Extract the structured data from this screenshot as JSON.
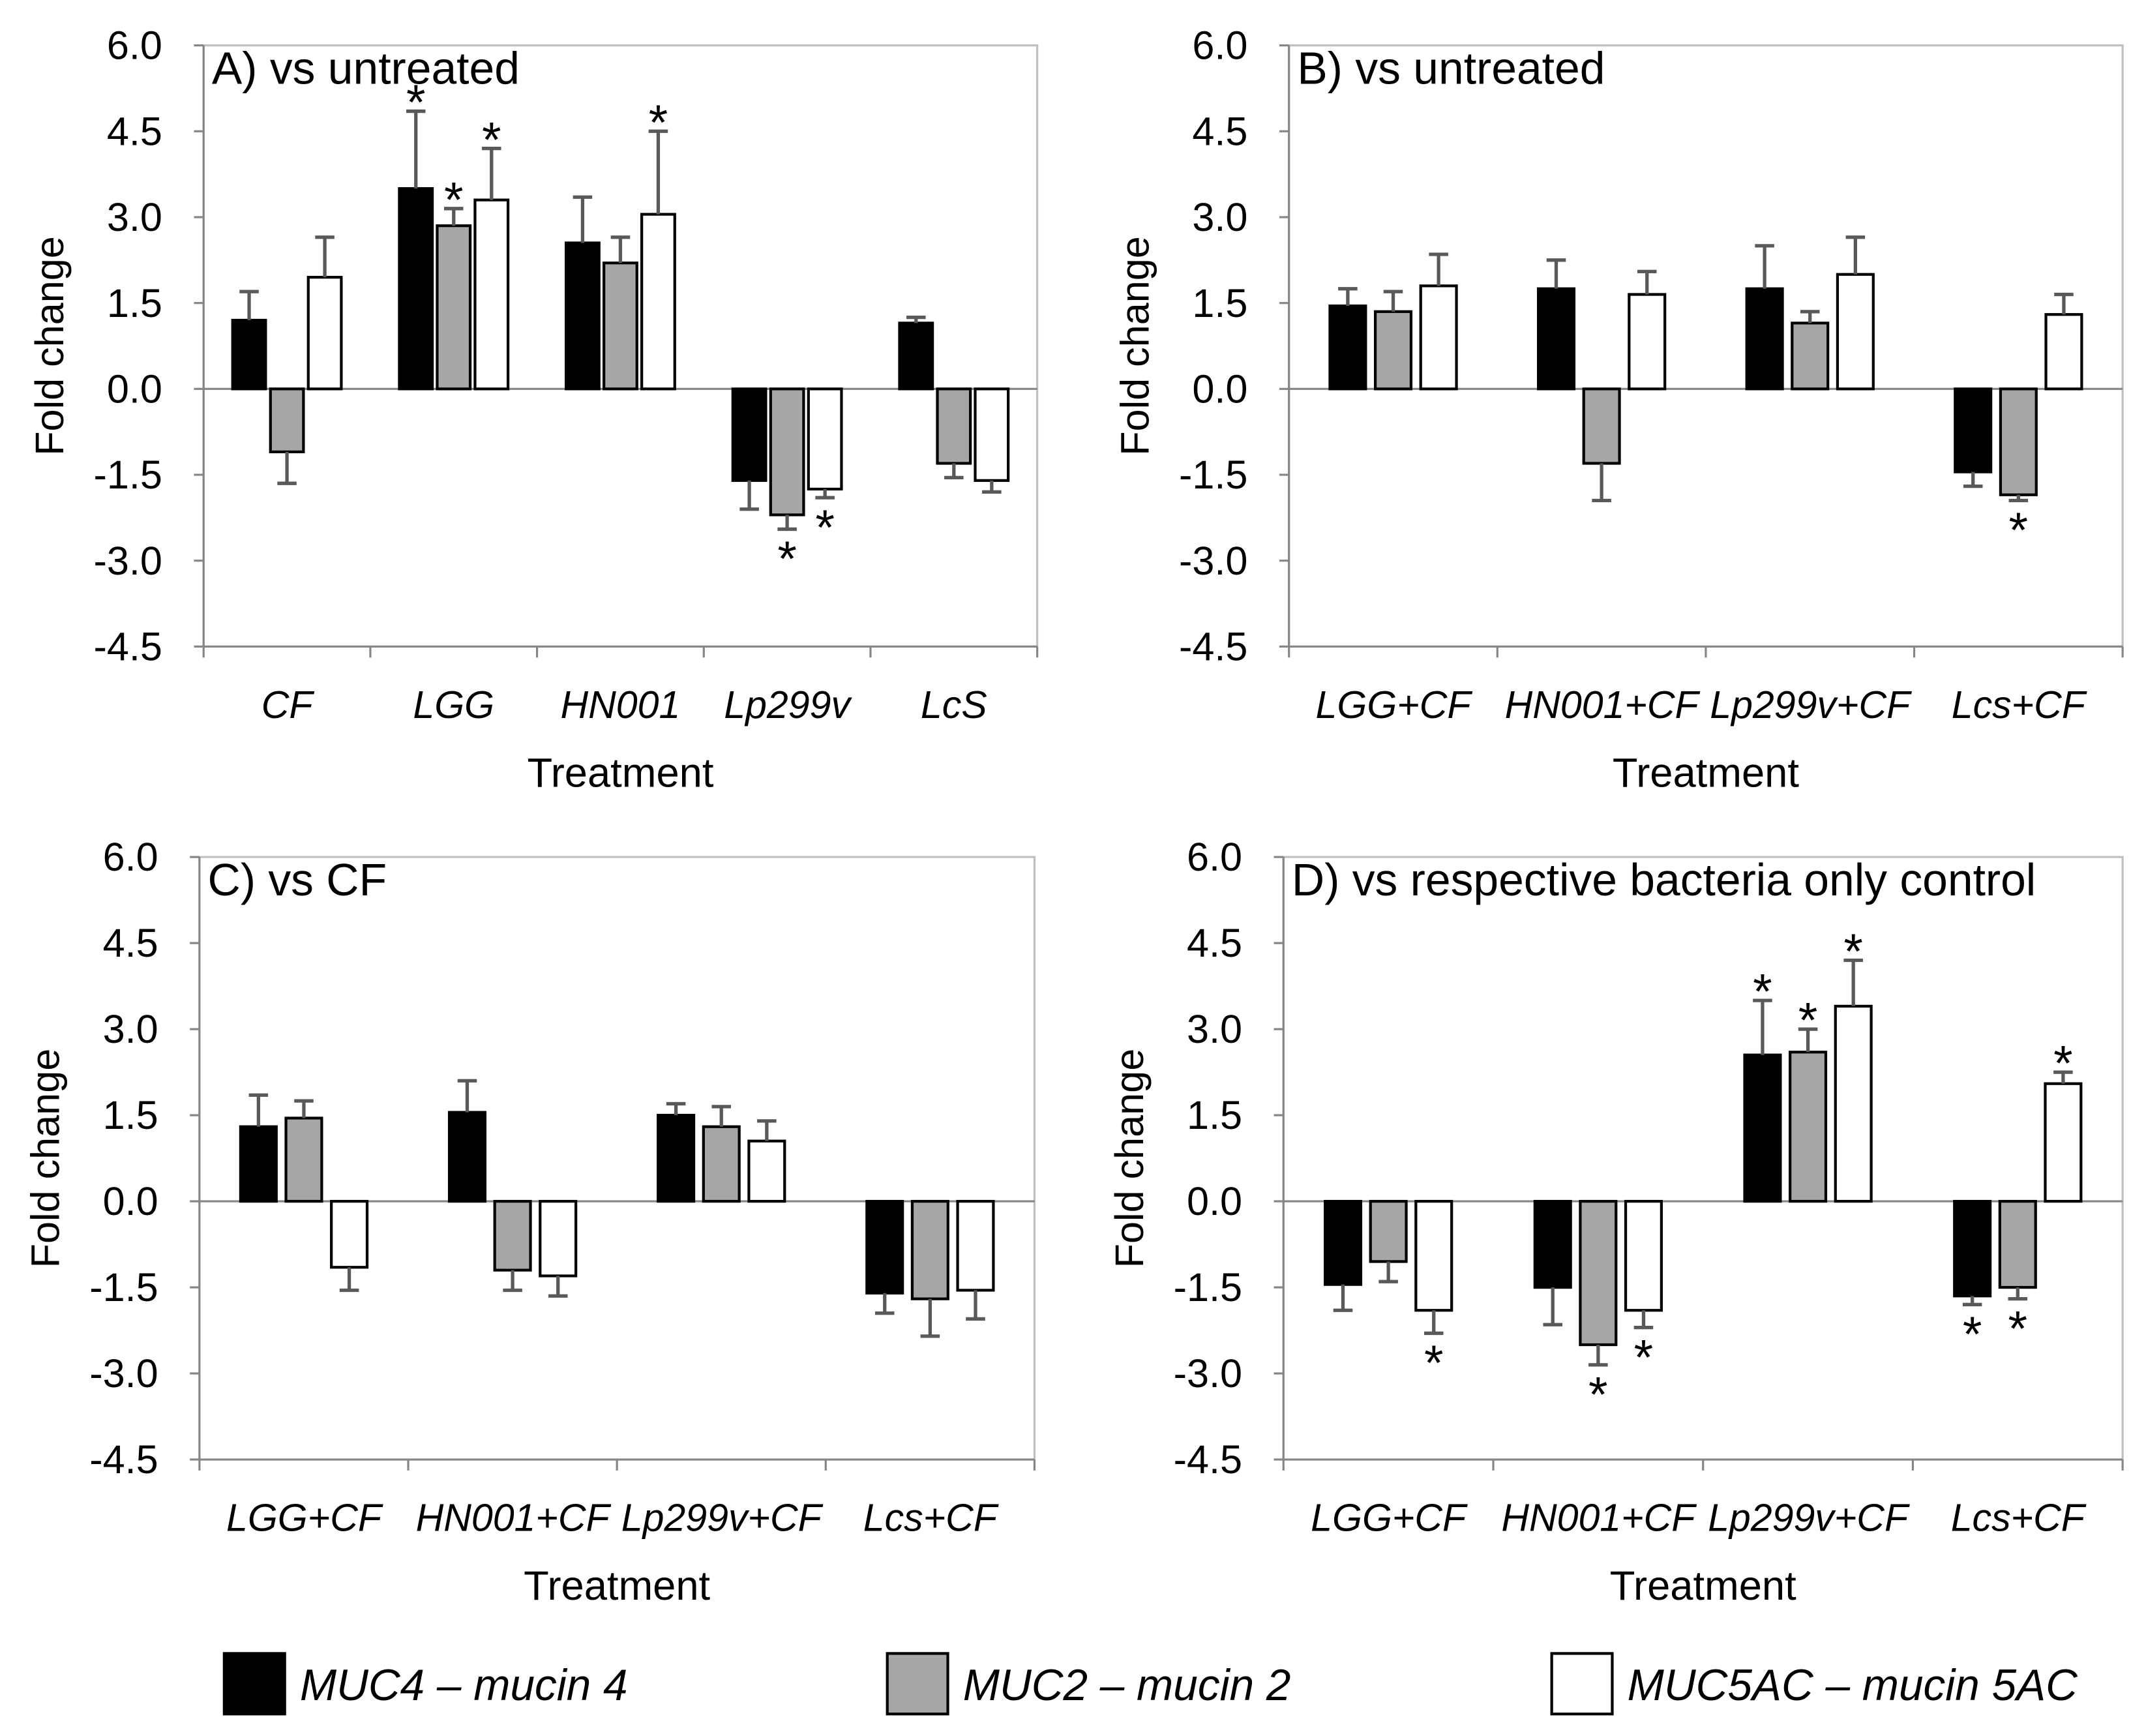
{
  "significance_marker": "*",
  "legend": [
    {
      "label": "MUC4 – mucin 4",
      "color": "#000000"
    },
    {
      "label": "MUC2 – mucin 2",
      "color": "#a6a6a6"
    },
    {
      "label": "MUC5AC – mucin 5AC",
      "color": "#ffffff"
    }
  ],
  "chart_data": [
    {
      "type": "bar",
      "title": "A) vs untreated",
      "xlabel": "Treatment",
      "ylabel": "Fold change",
      "ylim": [
        -4.5,
        6.0
      ],
      "yticks": [
        "6.0",
        "4.5",
        "3.0",
        "1.5",
        "0.0",
        "-1.5",
        "-3.0",
        "-4.5"
      ],
      "categories": [
        "CF",
        "LGG",
        "HN001",
        "Lp299v",
        "LcS"
      ],
      "series": [
        {
          "legend_index": 0,
          "values": [
            1.2,
            3.5,
            2.55,
            -1.6,
            1.15
          ],
          "errors": [
            0.5,
            1.35,
            0.8,
            0.5,
            0.1
          ],
          "significant": [
            false,
            true,
            false,
            false,
            false
          ]
        },
        {
          "legend_index": 1,
          "values": [
            -1.1,
            2.85,
            2.2,
            -2.2,
            -1.3
          ],
          "errors": [
            0.55,
            0.3,
            0.45,
            0.25,
            0.25
          ],
          "significant": [
            false,
            true,
            false,
            true,
            false
          ]
        },
        {
          "legend_index": 2,
          "values": [
            1.95,
            3.3,
            3.05,
            -1.75,
            -1.6
          ],
          "errors": [
            0.7,
            0.9,
            1.45,
            0.15,
            0.2
          ],
          "significant": [
            false,
            true,
            true,
            true,
            false
          ]
        }
      ]
    },
    {
      "type": "bar",
      "title": "B) vs untreated",
      "xlabel": "Treatment",
      "ylabel": "Fold change",
      "ylim": [
        -4.5,
        6.0
      ],
      "yticks": [
        "6.0",
        "4.5",
        "3.0",
        "1.5",
        "0.0",
        "-1.5",
        "-3.0",
        "-4.5"
      ],
      "categories": [
        "LGG+CF",
        "HN001+CF",
        "Lp299v+CF",
        "Lcs+CF"
      ],
      "series": [
        {
          "legend_index": 0,
          "values": [
            1.45,
            1.75,
            1.75,
            -1.45
          ],
          "errors": [
            0.3,
            0.5,
            0.75,
            0.25
          ],
          "significant": [
            false,
            false,
            false,
            false
          ]
        },
        {
          "legend_index": 1,
          "values": [
            1.35,
            -1.3,
            1.15,
            -1.85
          ],
          "errors": [
            0.35,
            0.65,
            0.2,
            0.1
          ],
          "significant": [
            false,
            false,
            false,
            true
          ]
        },
        {
          "legend_index": 2,
          "values": [
            1.8,
            1.65,
            2.0,
            1.3
          ],
          "errors": [
            0.55,
            0.4,
            0.65,
            0.35
          ],
          "significant": [
            false,
            false,
            false,
            false
          ]
        }
      ]
    },
    {
      "type": "bar",
      "title": "C) vs CF",
      "xlabel": "Treatment",
      "ylabel": "Fold change",
      "ylim": [
        -4.5,
        6.0
      ],
      "yticks": [
        "6.0",
        "4.5",
        "3.0",
        "1.5",
        "0.0",
        "-1.5",
        "-3.0",
        "-4.5"
      ],
      "categories": [
        "LGG+CF",
        "HN001+CF",
        "Lp299v+CF",
        "Lcs+CF"
      ],
      "series": [
        {
          "legend_index": 0,
          "values": [
            1.3,
            1.55,
            1.5,
            -1.6
          ],
          "errors": [
            0.55,
            0.55,
            0.2,
            0.35
          ],
          "significant": [
            false,
            false,
            false,
            false
          ]
        },
        {
          "legend_index": 1,
          "values": [
            1.45,
            -1.2,
            1.3,
            -1.7
          ],
          "errors": [
            0.3,
            0.35,
            0.35,
            0.65
          ],
          "significant": [
            false,
            false,
            false,
            false
          ]
        },
        {
          "legend_index": 2,
          "values": [
            -1.15,
            -1.3,
            1.05,
            -1.55
          ],
          "errors": [
            0.4,
            0.35,
            0.35,
            0.5
          ],
          "significant": [
            false,
            false,
            false,
            false
          ]
        }
      ]
    },
    {
      "type": "bar",
      "title": "D) vs respective bacteria only control",
      "xlabel": "Treatment",
      "ylabel": "Fold change",
      "ylim": [
        -4.5,
        6.0
      ],
      "yticks": [
        "6.0",
        "4.5",
        "3.0",
        "1.5",
        "0.0",
        "-1.5",
        "-3.0",
        "-4.5"
      ],
      "categories": [
        "LGG+CF",
        "HN001+CF",
        "Lp299v+CF",
        "Lcs+CF"
      ],
      "series": [
        {
          "legend_index": 0,
          "values": [
            -1.45,
            -1.5,
            2.55,
            -1.65
          ],
          "errors": [
            0.45,
            0.65,
            0.95,
            0.15
          ],
          "significant": [
            false,
            false,
            true,
            true
          ]
        },
        {
          "legend_index": 1,
          "values": [
            -1.05,
            -2.5,
            2.6,
            -1.5
          ],
          "errors": [
            0.35,
            0.35,
            0.4,
            0.2
          ],
          "significant": [
            false,
            true,
            true,
            true
          ]
        },
        {
          "legend_index": 2,
          "values": [
            -1.9,
            -1.9,
            3.4,
            2.05
          ],
          "errors": [
            0.4,
            0.3,
            0.8,
            0.2
          ],
          "significant": [
            true,
            true,
            true,
            true
          ]
        }
      ]
    }
  ]
}
